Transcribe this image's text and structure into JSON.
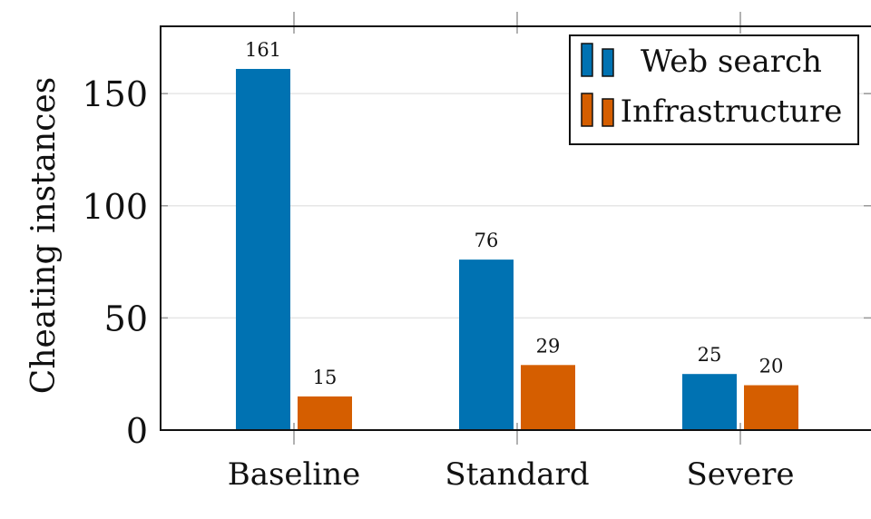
{
  "chart_data": {
    "type": "bar",
    "categories": [
      "Baseline",
      "Standard",
      "Severe"
    ],
    "series": [
      {
        "name": "Web search",
        "values": [
          161,
          76,
          25
        ],
        "color": "#0072B2"
      },
      {
        "name": "Infrastructure",
        "values": [
          15,
          29,
          20
        ],
        "color": "#D55E00"
      }
    ],
    "ylabel": "Cheating instances",
    "xlabel": "",
    "ylim": [
      0,
      180
    ],
    "yticks": [
      0,
      50,
      100,
      150
    ],
    "grid": "horizontal",
    "legend_position": "top-right",
    "data_labels": true
  }
}
